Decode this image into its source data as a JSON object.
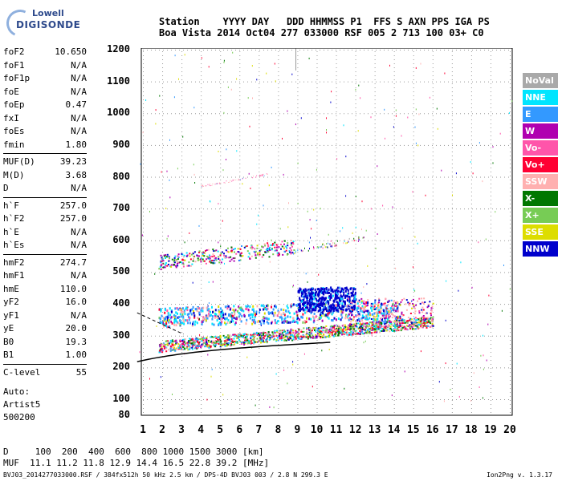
{
  "brand": {
    "line1": "Lowell",
    "line2": "DIGISONDE"
  },
  "header": {
    "labels": "Station    YYYY DAY   DDD HHMMSS P1  FFS S AXN PPS IGA PS",
    "values": "Boa Vista 2014 Oct04 277 033000 RSF 005 2 713 100 03+ C0"
  },
  "params": [
    {
      "name": "foF2",
      "value": "10.650"
    },
    {
      "name": "foF1",
      "value": "N/A"
    },
    {
      "name": "foF1p",
      "value": "N/A"
    },
    {
      "name": "foE",
      "value": "N/A"
    },
    {
      "name": "foEp",
      "value": "0.47"
    },
    {
      "name": "fxI",
      "value": "N/A"
    },
    {
      "name": "foEs",
      "value": "N/A"
    },
    {
      "name": "fmin",
      "value": "1.80"
    },
    {
      "name": "MUF(D)",
      "value": "39.23"
    },
    {
      "name": "M(D)",
      "value": "3.68"
    },
    {
      "name": "D",
      "value": "N/A"
    },
    {
      "name": "h`F",
      "value": "257.0"
    },
    {
      "name": "h`F2",
      "value": "257.0"
    },
    {
      "name": "h`E",
      "value": "N/A"
    },
    {
      "name": "h`Es",
      "value": "N/A"
    },
    {
      "name": "hmF2",
      "value": "274.7"
    },
    {
      "name": "hmF1",
      "value": "N/A"
    },
    {
      "name": "hmE",
      "value": "110.0"
    },
    {
      "name": "yF2",
      "value": "16.0"
    },
    {
      "name": "yF1",
      "value": "N/A"
    },
    {
      "name": "yE",
      "value": "20.0"
    },
    {
      "name": "B0",
      "value": "19.3"
    },
    {
      "name": "B1",
      "value": "1.00"
    },
    {
      "name": "C-level",
      "value": "55"
    }
  ],
  "auto": {
    "line1": "Auto:",
    "line2": "Artist5",
    "line3": "500200"
  },
  "legend": [
    {
      "label": "NoVal",
      "color": "#a9a9a9"
    },
    {
      "label": "NNE",
      "color": "#00e5ff"
    },
    {
      "label": "E",
      "color": "#3399ff"
    },
    {
      "label": "W",
      "color": "#b000b0"
    },
    {
      "label": "Vo-",
      "color": "#ff55aa"
    },
    {
      "label": "Vo+",
      "color": "#ff0033"
    },
    {
      "label": "SSW",
      "color": "#ffb0b0"
    },
    {
      "label": "X-",
      "color": "#007700"
    },
    {
      "label": "X+",
      "color": "#77cc55"
    },
    {
      "label": "SSE",
      "color": "#dddd00"
    },
    {
      "label": "NNW",
      "color": "#0000cc"
    }
  ],
  "chart_data": {
    "type": "scatter",
    "title": "",
    "xlabel": "",
    "ylabel": "",
    "xlim": [
      0.6,
      20.2
    ],
    "ylim": [
      80,
      1210
    ],
    "x_ticks": [
      "1",
      "2",
      "3",
      "4",
      "5",
      "6",
      "7",
      "8",
      "9",
      "10",
      "11",
      "12",
      "13",
      "14",
      "15",
      "16",
      "17",
      "18",
      "19",
      "20"
    ],
    "y_ticks": [
      "80",
      "100",
      "200",
      "300",
      "400",
      "500",
      "600",
      "700",
      "800",
      "900",
      "1000",
      "1100",
      "1200"
    ],
    "grid": true,
    "traces": [
      {
        "name": "F2 trace",
        "x_range": [
          1.8,
          16
        ],
        "y_range": [
          265,
          355
        ]
      },
      {
        "name": "upper echo",
        "x_range": [
          1.8,
          12
        ],
        "y_range": [
          520,
          600
        ]
      },
      {
        "name": "NNW cluster",
        "x_range": [
          9,
          12
        ],
        "y_range": [
          380,
          450
        ]
      }
    ]
  },
  "footer": {
    "line1": "D     100  200  400  600  800 1000 1500 3000 [km]",
    "line2": "MUF  11.1 11.2 11.8 12.9 14.4 16.5 22.8 39.2 [MHz]",
    "line3": "BVJ03_2014277033000.RSF / 384fx512h 50 kHz 2.5 km / DPS-4D BVJ03 003 / 2.8 N 299.3 E",
    "version": "Ion2Png v. 1.3.17"
  }
}
